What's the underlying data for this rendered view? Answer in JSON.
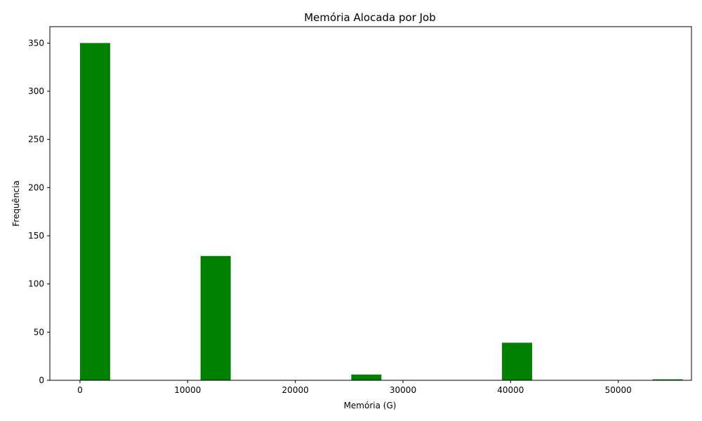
{
  "chart_data": {
    "type": "bar",
    "title": "Memória Alocada por Job",
    "xlabel": "Memória (G)",
    "ylabel": "Frequência",
    "bar_color": "#008000",
    "xlim": [
      -2800,
      56800
    ],
    "ylim": [
      0,
      367
    ],
    "x_ticks": [
      0,
      10000,
      20000,
      30000,
      40000,
      50000
    ],
    "y_ticks": [
      0,
      50,
      100,
      150,
      200,
      250,
      300,
      350
    ],
    "bin_width": 2800,
    "bins": [
      {
        "start": 0,
        "value": 350
      },
      {
        "start": 11200,
        "value": 129
      },
      {
        "start": 25200,
        "value": 6
      },
      {
        "start": 39200,
        "value": 39
      },
      {
        "start": 53200,
        "value": 1
      }
    ],
    "grid": false,
    "legend": "none"
  }
}
